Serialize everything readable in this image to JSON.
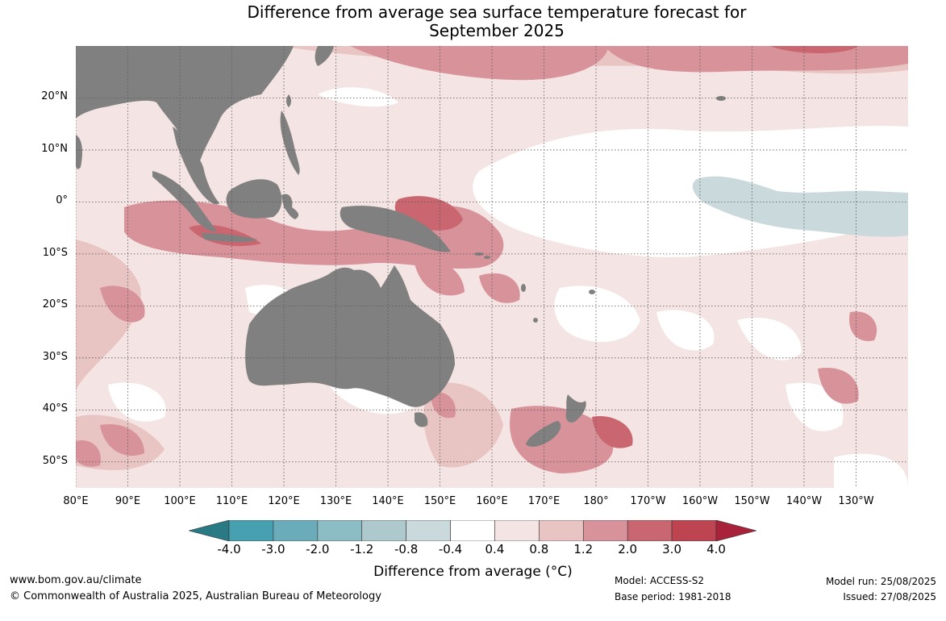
{
  "title": {
    "line1": "Difference from average sea surface temperature forecast for",
    "line2": "September 2025"
  },
  "map": {
    "lon_range": [
      80,
      240
    ],
    "lat_range": [
      -55,
      30
    ],
    "lat_ticks": [
      "20°N",
      "10°N",
      "0°",
      "10°S",
      "20°S",
      "30°S",
      "40°S",
      "50°S"
    ],
    "lat_values": [
      20,
      10,
      0,
      -10,
      -20,
      -30,
      -40,
      -50
    ],
    "lon_ticks": [
      "80°E",
      "90°E",
      "100°E",
      "110°E",
      "120°E",
      "130°E",
      "140°E",
      "150°E",
      "160°E",
      "170°E",
      "180°",
      "170°W",
      "160°W",
      "150°W",
      "140°W",
      "130°W"
    ],
    "lon_values": [
      80,
      90,
      100,
      110,
      120,
      130,
      140,
      150,
      160,
      170,
      180,
      190,
      200,
      210,
      220,
      230
    ],
    "land_color": "#808080"
  },
  "colorbar": {
    "ticks": [
      "-4.0",
      "-3.0",
      "-2.0",
      "-1.2",
      "-0.8",
      "-0.4",
      "0.4",
      "0.8",
      "1.2",
      "2.0",
      "3.0",
      "4.0"
    ],
    "colors": [
      "#2a7a86",
      "#47a0b0",
      "#6aacba",
      "#8cbcc4",
      "#aec9cd",
      "#c9d9dc",
      "#ffffff",
      "#f4e4e3",
      "#e8c5c2",
      "#d8929a",
      "#c9666f",
      "#bf4451",
      "#a8223a"
    ],
    "label": "Difference from average (°C)"
  },
  "footer": {
    "website": "www.bom.gov.au/climate",
    "copyright": "© Commonwealth of Australia 2025, Australian Bureau of Meteorology",
    "model": "Model: ACCESS-S2",
    "base_period": "Base period: 1981-2018",
    "model_run": "Model run: 25/08/2025",
    "issued": "Issued: 27/08/2025"
  }
}
